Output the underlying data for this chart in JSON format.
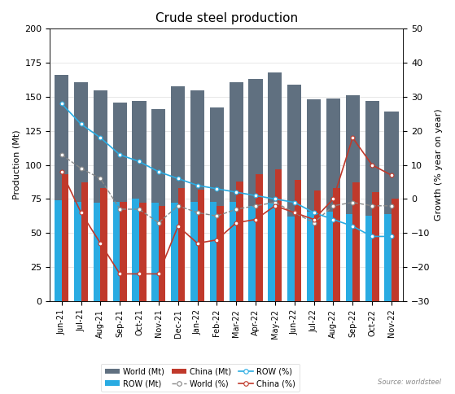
{
  "months": [
    "Jun-21",
    "Jul-21",
    "Aug-21",
    "Sep-21",
    "Oct-21",
    "Nov-21",
    "Dec-21",
    "Jan-22",
    "Feb-22",
    "Mar-22",
    "Apr-22",
    "May-22",
    "Jun-22",
    "Jul-22",
    "Aug-22",
    "Sep-22",
    "Oct-22",
    "Nov-22"
  ],
  "world_mt": [
    166,
    161,
    155,
    146,
    147,
    141,
    158,
    155,
    142,
    161,
    163,
    168,
    159,
    148,
    149,
    151,
    147,
    139
  ],
  "row_mt": [
    74,
    73,
    72,
    73,
    75,
    72,
    72,
    73,
    73,
    73,
    70,
    72,
    62,
    66,
    66,
    64,
    63,
    64
  ],
  "china_mt": [
    93,
    87,
    83,
    73,
    72,
    70,
    83,
    82,
    70,
    88,
    93,
    97,
    89,
    81,
    83,
    87,
    80,
    75
  ],
  "world_pct": [
    13,
    9,
    6,
    -3,
    -3,
    -7,
    -2,
    -4,
    -5,
    -3,
    -2,
    -1,
    -4,
    -7,
    -2,
    -1,
    -2,
    -2
  ],
  "row_pct": [
    28,
    22,
    18,
    13,
    11,
    8,
    6,
    4,
    3,
    2,
    1,
    0,
    -1,
    -4,
    -6,
    -8,
    -11,
    -11
  ],
  "china_pct": [
    8,
    -4,
    -13,
    -22,
    -22,
    -22,
    -8,
    -13,
    -12,
    -7,
    -6,
    -2,
    -4,
    -6,
    0,
    18,
    10,
    7
  ],
  "title": "Crude steel production",
  "ylabel_left": "Production (Mt)",
  "ylabel_right": "Growth (% year on year)",
  "source": "Source: worldsteel",
  "world_bar_color": "#607080",
  "row_bar_color": "#29ABE2",
  "china_bar_color": "#C0392B",
  "world_pct_color": "#888888",
  "row_pct_color": "#29ABE2",
  "china_pct_color": "#C0392B",
  "ylim_left": [
    0,
    200
  ],
  "ylim_right": [
    -30,
    50
  ],
  "yticks_left": [
    0,
    25,
    50,
    75,
    100,
    125,
    150,
    175,
    200
  ],
  "yticks_right": [
    -30,
    -20,
    -10,
    0,
    10,
    20,
    30,
    40,
    50
  ]
}
